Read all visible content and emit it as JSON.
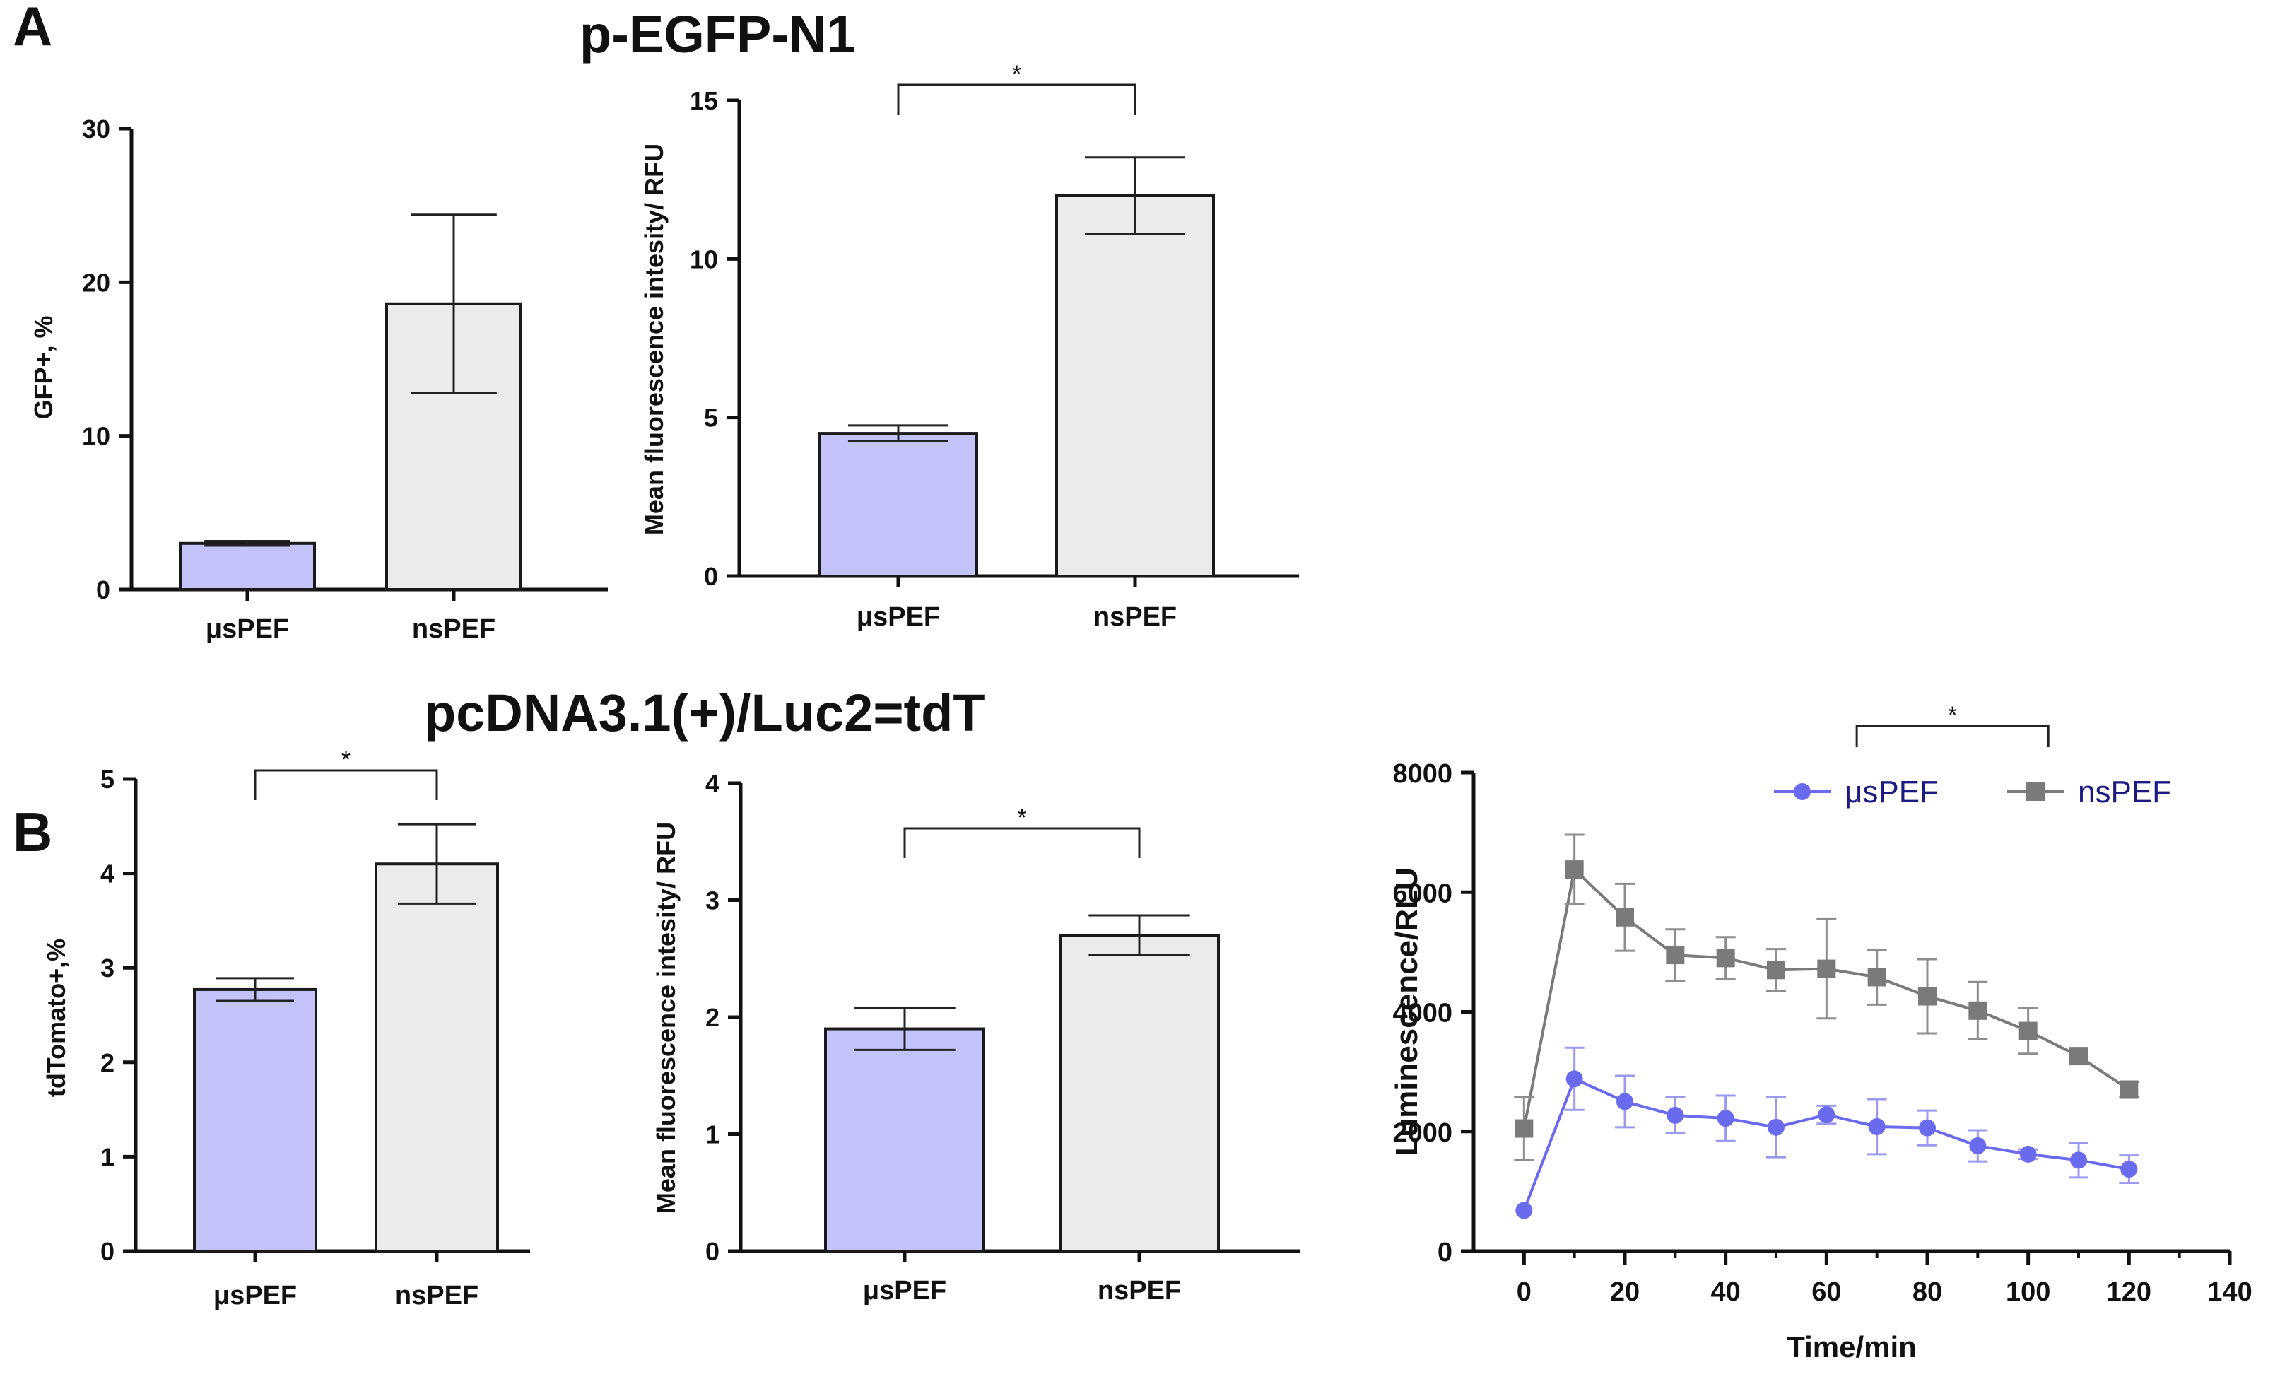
{
  "panels": {
    "a": "A",
    "b": "B"
  },
  "titles": {
    "top": "p-EGFP-N1",
    "bottom": "pcDNA3.1(+)/Luc2=tdT"
  },
  "colors": {
    "us": "#c3c3fa",
    "ns": "#ebebeb",
    "bar_edge": "#1a1a1a",
    "line_us": "#6a6aee",
    "line_ns": "#7a7a7a",
    "err_us": "#9a9af0",
    "err_ns": "#8e8e8e"
  },
  "chart_data": [
    {
      "id": "a1",
      "type": "bar",
      "title": "",
      "xlabel": "",
      "ylabel": "GFP+, %",
      "ylim": [
        0,
        30
      ],
      "yticks": [
        "0",
        "10",
        "20",
        "30"
      ],
      "categories": [
        "μsPEF",
        "nsPEF"
      ],
      "values": [
        3.0,
        18.6
      ],
      "errors": [
        0.15,
        5.8
      ],
      "significance": []
    },
    {
      "id": "a2",
      "type": "bar",
      "title": "",
      "xlabel": "",
      "ylabel": "Mean fluorescence intesity/ RFU",
      "ylim": [
        0,
        15
      ],
      "yticks": [
        "0",
        "5",
        "10",
        "15"
      ],
      "categories": [
        "μsPEF",
        "nsPEF"
      ],
      "values": [
        4.5,
        12.0
      ],
      "errors": [
        0.25,
        1.2
      ],
      "significance": [
        "*"
      ]
    },
    {
      "id": "b1",
      "type": "bar",
      "title": "",
      "xlabel": "",
      "ylabel": "tdTomato+,%",
      "ylim": [
        0,
        5
      ],
      "yticks": [
        "0",
        "1",
        "2",
        "3",
        "4",
        "5"
      ],
      "categories": [
        "μsPEF",
        "nsPEF"
      ],
      "values": [
        2.77,
        4.1
      ],
      "errors": [
        0.12,
        0.42
      ],
      "significance": [
        "*"
      ]
    },
    {
      "id": "b2",
      "type": "bar",
      "title": "",
      "xlabel": "",
      "ylabel": "Mean fluorescence intesity/ RFU",
      "ylim": [
        0,
        4
      ],
      "yticks": [
        "0",
        "1",
        "2",
        "3",
        "4"
      ],
      "categories": [
        "μsPEF",
        "nsPEF"
      ],
      "values": [
        1.9,
        2.7
      ],
      "errors": [
        0.18,
        0.17
      ],
      "significance": [
        "*"
      ]
    },
    {
      "id": "b3",
      "type": "line",
      "title": "",
      "xlabel": "Time/min",
      "ylabel": "Luminescence/RLU",
      "xlim": [
        -10,
        140
      ],
      "ylim": [
        0,
        8000
      ],
      "xticks": [
        "0",
        "20",
        "40",
        "60",
        "80",
        "100",
        "120",
        "140"
      ],
      "yticks": [
        "0",
        "2000",
        "4000",
        "6000",
        "8000"
      ],
      "x": [
        0,
        10,
        20,
        30,
        40,
        50,
        60,
        70,
        80,
        90,
        100,
        110,
        120
      ],
      "series": [
        {
          "name": "μsPEF",
          "marker": "circle",
          "values": [
            680,
            2880,
            2500,
            2270,
            2220,
            2070,
            2280,
            2080,
            2060,
            1760,
            1620,
            1520,
            1370
          ],
          "errors": [
            0,
            520,
            430,
            300,
            380,
            500,
            150,
            460,
            290,
            260,
            80,
            290,
            230
          ]
        },
        {
          "name": "nsPEF",
          "marker": "square",
          "values": [
            2050,
            6380,
            5580,
            4950,
            4900,
            4700,
            4720,
            4580,
            4260,
            4020,
            3680,
            3260,
            2700
          ],
          "errors": [
            520,
            580,
            560,
            430,
            350,
            350,
            830,
            460,
            620,
            480,
            380,
            80,
            130
          ]
        }
      ],
      "significance": [
        "*"
      ]
    }
  ]
}
